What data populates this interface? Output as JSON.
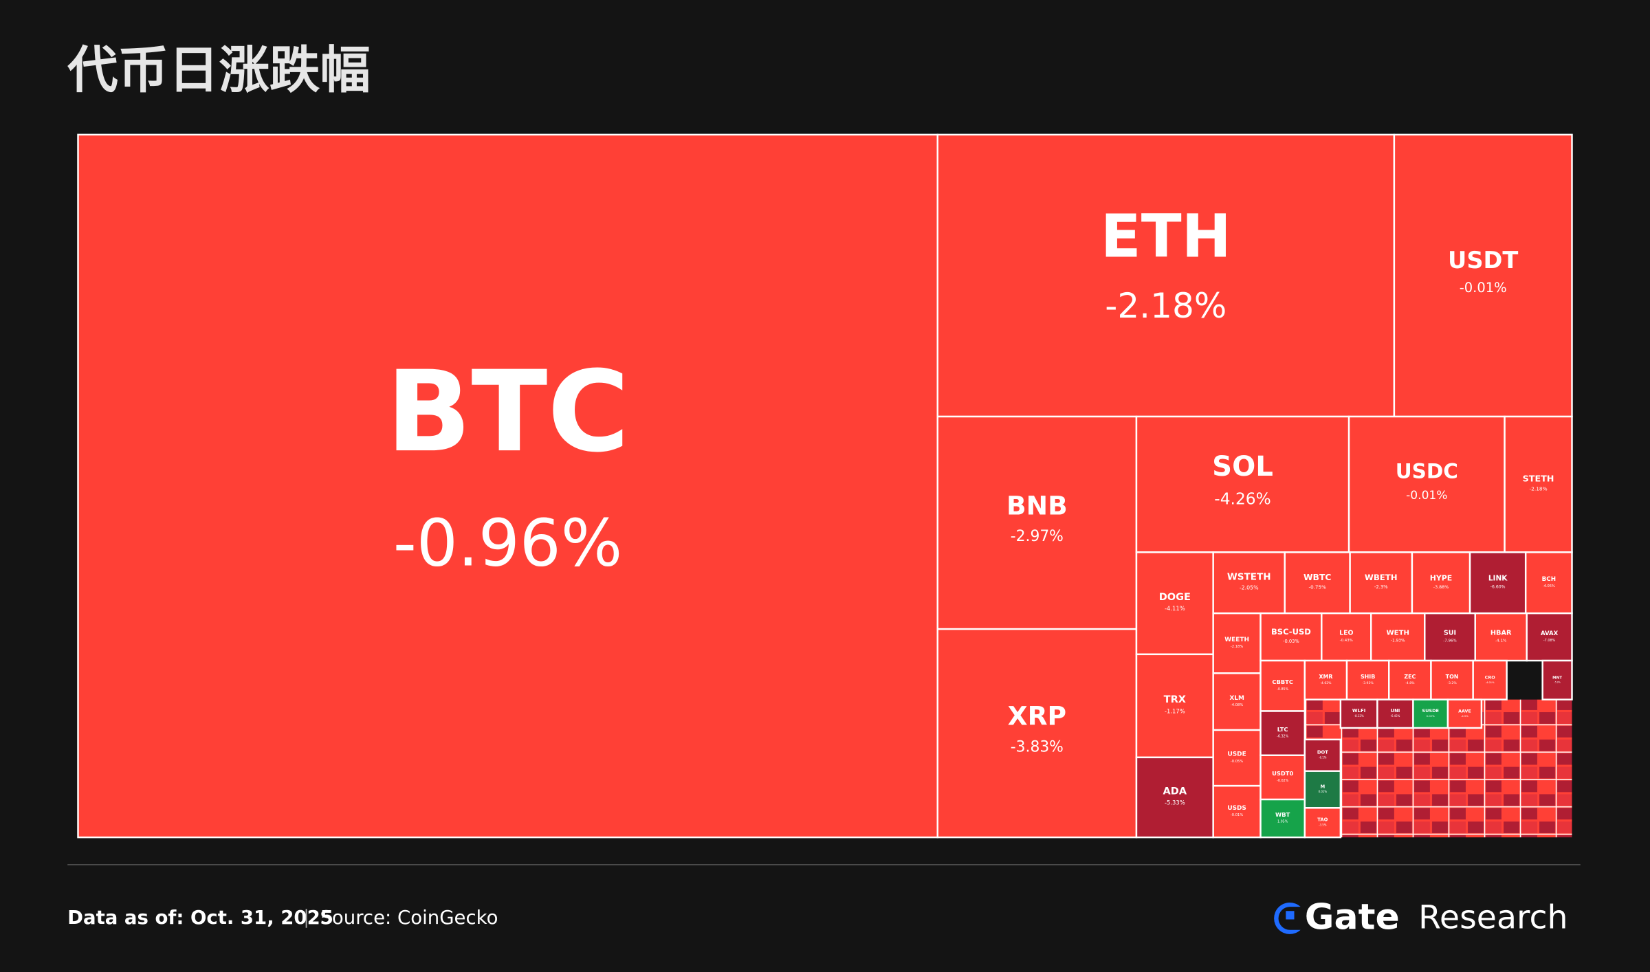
{
  "chart_data": {
    "type": "treemap",
    "title": "代币日涨跌幅",
    "categories": [
      "BTC",
      "ETH",
      "USDT",
      "BNB",
      "XRP",
      "SOL",
      "USDC",
      "STETH",
      "DOGE",
      "TRX",
      "ADA",
      "WSTETH",
      "WBTC",
      "WBETH",
      "HYPE",
      "LINK",
      "BCH",
      "WEETH",
      "BSC-USD",
      "LEO",
      "WETH",
      "SUI",
      "HBAR",
      "AVAX",
      "XLM",
      "USDE",
      "USDS",
      "CBBTC",
      "LTC",
      "USDT0",
      "WBT",
      "XMR",
      "SHIB",
      "ZEC",
      "TON",
      "CRO",
      "MNT",
      "WLFI",
      "UNI",
      "SUSDE",
      "AAVE",
      "DOT",
      "M",
      "TAO"
    ],
    "values": [
      -0.96,
      -2.18,
      -0.01,
      -2.97,
      -3.83,
      -4.26,
      -0.01,
      -2.18,
      -4.11,
      -1.17,
      -5.33,
      -2.05,
      -0.75,
      -2.3,
      -3.88,
      -6.6,
      -4.05,
      -2.18,
      -0.03,
      -0.43,
      -1.93,
      -7.96,
      -4.1,
      -7.08,
      -4.08,
      -0.05,
      -0.01,
      -0.85,
      -6.32,
      -0.02,
      1.05,
      -4.62,
      -3.93,
      -4.8,
      -3.2,
      -4.01,
      -5.9,
      -8.12,
      -6.45,
      0.02,
      -4.5,
      -6.1,
      0.01,
      -3.5
    ],
    "value_labels": [
      "-0.96%",
      "-2.18%",
      "-0.01%",
      "-2.97%",
      "-3.83%",
      "-4.26%",
      "-0.01%",
      "-2.18%",
      "-4.11%",
      "-1.17%",
      "-5.33%",
      "-2.05%",
      "-0.75%",
      "-2.3%",
      "-3.88%",
      "-6.60%",
      "-4.05%",
      "-2.18%",
      "-0.03%",
      "-0.43%",
      "-1.93%",
      "-7.96%",
      "-4.1%",
      "-7.08%",
      "-4.08%",
      "-0.05%",
      "-0.01%",
      "-0.85%",
      "-6.32%",
      "-0.02%",
      "1.05%",
      "-4.62%",
      "-3.93%",
      "-4.8%",
      "-3.2%",
      "-4.01%",
      "-5.9%",
      "-8.12%",
      "-6.45%",
      "0.02%",
      "-4.5%",
      "-6.1%",
      "0.01%",
      "-3.5%"
    ],
    "colors": [
      "#ff4036",
      "#ff4036",
      "#ff4036",
      "#ff4036",
      "#ff4036",
      "#ff4036",
      "#ff4036",
      "#ff4036",
      "#ff4036",
      "#ff4036",
      "#b01e33",
      "#ff4036",
      "#ff4036",
      "#ff4036",
      "#ff4036",
      "#b01e33",
      "#ff4036",
      "#ff4036",
      "#ff4036",
      "#ff4036",
      "#ff4036",
      "#b01e33",
      "#ff4036",
      "#b01e33",
      "#ff4036",
      "#ff4036",
      "#ff4036",
      "#ff4036",
      "#b01e33",
      "#ff4036",
      "#16a34a",
      "#ff4036",
      "#ff4036",
      "#ff4036",
      "#ff4036",
      "#ff4036",
      "#b01e33",
      "#b01e33",
      "#b01e33",
      "#16a34a",
      "#ff4036",
      "#b01e33",
      "#1e7a45",
      "#ff4036"
    ]
  },
  "footer": {
    "date": "Data as of: Oct. 31, 2025",
    "source": "Source:  CoinGecko",
    "brand": "Gate",
    "brand_suffix": "Research"
  }
}
